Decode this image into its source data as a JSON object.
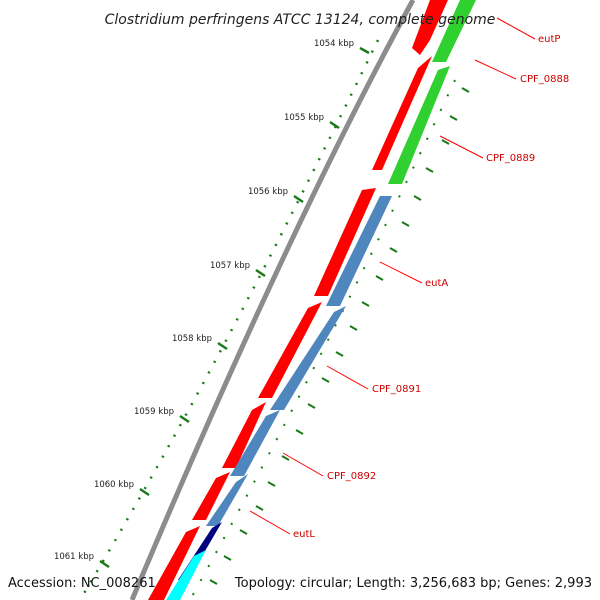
{
  "title": "Clostridium perfringens ATCC 13124, complete genome",
  "footer": {
    "accession": "Accession: NC_008261",
    "summary": "Topology: circular; Length: 3,256,683 bp; Genes: 2,993"
  },
  "ticks": [
    {
      "label": "1054 kbp"
    },
    {
      "label": "1055 kbp"
    },
    {
      "label": "1056 kbp"
    },
    {
      "label": "1057 kbp"
    },
    {
      "label": "1058 kbp"
    },
    {
      "label": "1059 kbp"
    },
    {
      "label": "1060 kbp"
    },
    {
      "label": "1061 kbp"
    }
  ],
  "gene_labels": [
    {
      "name": "eutP"
    },
    {
      "name": "CPF_0888"
    },
    {
      "name": "CPF_0889"
    },
    {
      "name": "eutA"
    },
    {
      "name": "CPF_0891"
    },
    {
      "name": "CPF_0892"
    },
    {
      "name": "eutL"
    }
  ],
  "colors": {
    "backbone": "#8c8c8c",
    "forward_cds": "#ff0000",
    "reverse_cds_blue": "#4f86bd",
    "reverse_cds_green": "#2fd02f",
    "reverse_cds_navy": "#000080",
    "reverse_cds_cyan": "#00ffff",
    "tick_mark": "#1a7a1a",
    "label_line": "#ff0000",
    "label_text": "#cc0000"
  }
}
